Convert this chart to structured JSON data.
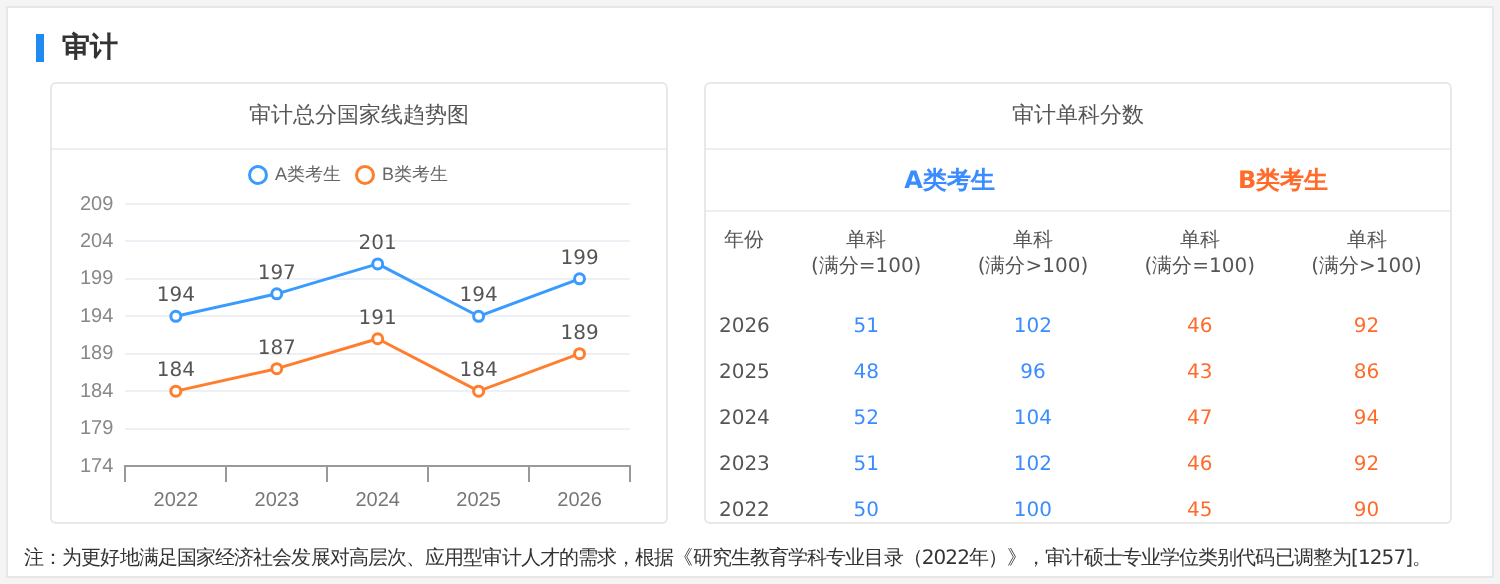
{
  "chart_data": [
    {
      "type": "line",
      "title": "审计总分国家线趋势图",
      "categories": [
        "2022",
        "2023",
        "2024",
        "2025",
        "2026"
      ],
      "series": [
        {
          "name": "A类考生",
          "color": "#3a9bff",
          "values": [
            194,
            197,
            201,
            194,
            199
          ]
        },
        {
          "name": "B类考生",
          "color": "#ff7e2e",
          "values": [
            184,
            187,
            191,
            184,
            189
          ]
        }
      ],
      "ylim": [
        174,
        209
      ],
      "yticks": [
        174,
        179,
        184,
        189,
        194,
        199,
        204,
        209
      ],
      "grid": "y",
      "legend": "top",
      "marker": "circle",
      "data_labels": true,
      "annotations": [
        "审计",
        "注：为更好地满足国家经济社会发展对高层次、应用型审计人才的需求，根据《研究生教育学科专业目录（2022年）》，审计硕士专业学位类别代码已调整为[1257]。"
      ]
    },
    {
      "type": "heatmap",
      "title": "审计单科分数",
      "ylabel": "年份",
      "data_labels": true,
      "annotations": [
        "A类考生",
        "B类考生"
      ],
      "colors": [
        "#3a8cff",
        "#3a8cff",
        "#ff6b2b",
        "#ff6b2b"
      ],
      "categories": [
        "单科\n(满分=100)",
        "单科\n(满分>100)",
        "单科\n(满分=100)",
        "单科\n(满分>100)"
      ],
      "y_categories": [
        "2026",
        "2025",
        "2024",
        "2023",
        "2022"
      ],
      "cells": [
        [
          51,
          102,
          46,
          92
        ],
        [
          48,
          96,
          43,
          86
        ],
        [
          52,
          104,
          47,
          94
        ],
        [
          51,
          102,
          46,
          92
        ],
        [
          50,
          100,
          45,
          90
        ]
      ]
    }
  ]
}
